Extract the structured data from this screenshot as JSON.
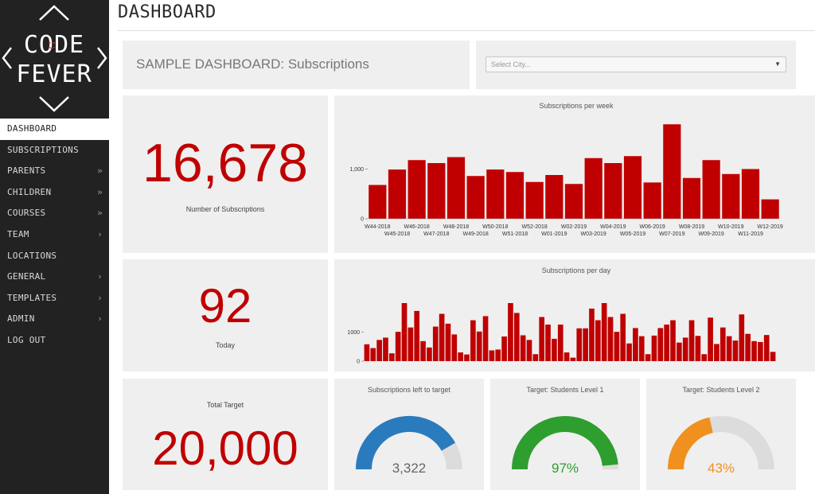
{
  "sidebar": {
    "logo_line1": "CODE",
    "logo_line2": "FEVER",
    "items": [
      {
        "label": "DASHBOARD",
        "chevron": ""
      },
      {
        "label": "SUBSCRIPTIONS",
        "chevron": ""
      },
      {
        "label": "PARENTS",
        "chevron": "»"
      },
      {
        "label": "CHILDREN",
        "chevron": "»"
      },
      {
        "label": "COURSES",
        "chevron": "»"
      },
      {
        "label": "TEAM",
        "chevron": "›"
      },
      {
        "label": "LOCATIONS",
        "chevron": ""
      },
      {
        "label": "GENERAL",
        "chevron": "›"
      },
      {
        "label": "TEMPLATES",
        "chevron": "›"
      },
      {
        "label": "ADMIN",
        "chevron": "›"
      },
      {
        "label": "LOG OUT",
        "chevron": ""
      }
    ]
  },
  "header": {
    "title": "DASHBOARD"
  },
  "dashboard": {
    "title": "SAMPLE DASHBOARD: Subscriptions",
    "city_select": {
      "placeholder": "Select City..."
    },
    "kpis": {
      "subscriptions": {
        "value": "16,678",
        "label": "Number of Subscriptions"
      },
      "today": {
        "value": "92",
        "label": "Today"
      },
      "target": {
        "value": "20,000",
        "label": "Total Target"
      }
    },
    "gauges": [
      {
        "title": "Subscriptions left to target",
        "value_text": "3,322",
        "fraction": 0.834,
        "color": "#2a7bbd",
        "text_color": "#666666"
      },
      {
        "title": "Target: Students Level 1",
        "value_text": "97%",
        "fraction": 0.97,
        "color": "#2e9e2e",
        "text_color": "#2e9e2e"
      },
      {
        "title": "Target: Students Level 2",
        "value_text": "43%",
        "fraction": 0.43,
        "color": "#f0901e",
        "text_color": "#f0901e"
      }
    ]
  },
  "colors": {
    "accent": "#c00000",
    "sidebar_bg": "#222222",
    "panel_bg": "#efefef",
    "gauge_track": "#dcdcdc"
  },
  "chart_data": [
    {
      "type": "bar",
      "title": "Subscriptions per week",
      "categories": [
        "W44-2018",
        "W45-2018",
        "W46-2018",
        "W47-2018",
        "W48-2018",
        "W49-2018",
        "W50-2018",
        "W51-2018",
        "W52-2018",
        "W01-2019",
        "W02-2019",
        "W03-2019",
        "W04-2019",
        "W05-2019",
        "W06-2019",
        "W07-2019",
        "W08-2019",
        "W09-2019",
        "W10-2019",
        "W11-2019",
        "W12-2019"
      ],
      "values": [
        680,
        990,
        1180,
        1120,
        1240,
        860,
        990,
        940,
        740,
        880,
        700,
        1220,
        1120,
        1260,
        730,
        1900,
        820,
        1180,
        900,
        1000,
        390
      ],
      "yticks": [
        0,
        1000
      ],
      "ytick_labels": [
        "0",
        "1,000"
      ],
      "ylim": [
        0,
        2000
      ],
      "grid": false
    },
    {
      "type": "bar",
      "title": "Subscriptions per day",
      "values": [
        580,
        450,
        730,
        810,
        270,
        1010,
        2000,
        1160,
        1730,
        690,
        470,
        1190,
        1630,
        1290,
        920,
        300,
        230,
        1410,
        1020,
        1550,
        370,
        400,
        850,
        2000,
        1660,
        890,
        730,
        240,
        1520,
        1260,
        770,
        1260,
        300,
        120,
        1130,
        1130,
        1810,
        1410,
        2000,
        1520,
        1010,
        1630,
        610,
        1140,
        860,
        240,
        880,
        1140,
        1260,
        1410,
        640,
        810,
        1410,
        870,
        240,
        1500,
        590,
        1160,
        860,
        710,
        1610,
        940,
        690,
        660,
        900,
        320
      ],
      "yticks": [
        0,
        1000
      ],
      "ytick_labels": [
        "0",
        "1000"
      ],
      "ylim": [
        0,
        2000
      ],
      "grid": false
    }
  ]
}
